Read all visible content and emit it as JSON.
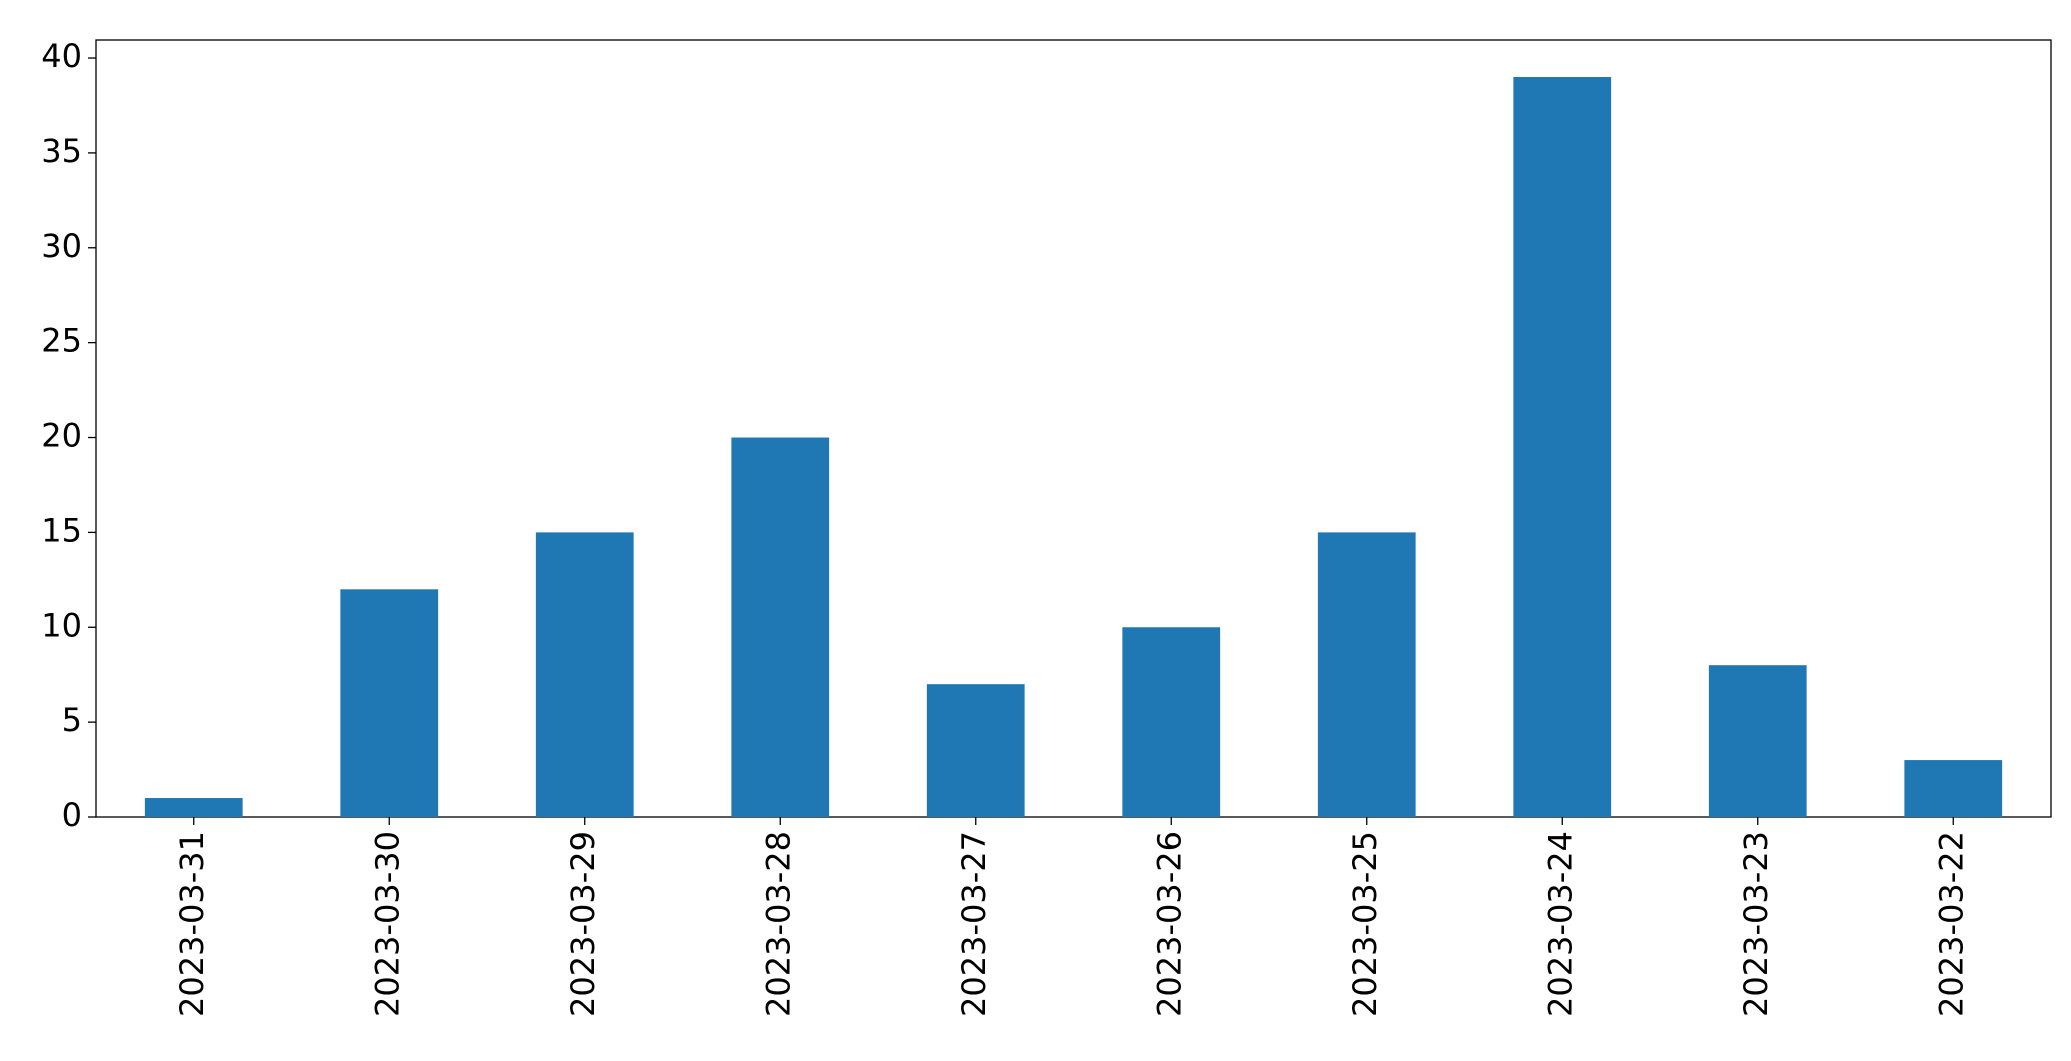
{
  "chart_data": {
    "type": "bar",
    "categories": [
      "2023-03-31",
      "2023-03-30",
      "2023-03-29",
      "2023-03-28",
      "2023-03-27",
      "2023-03-26",
      "2023-03-25",
      "2023-03-24",
      "2023-03-23",
      "2023-03-22"
    ],
    "values": [
      1,
      12,
      15,
      20,
      7,
      10,
      15,
      39,
      8,
      3
    ],
    "color": "#1f77b4",
    "ylim": [
      0,
      40.95
    ],
    "yticks": [
      0,
      5,
      10,
      15,
      20,
      25,
      30,
      35,
      40
    ],
    "grid": false
  }
}
